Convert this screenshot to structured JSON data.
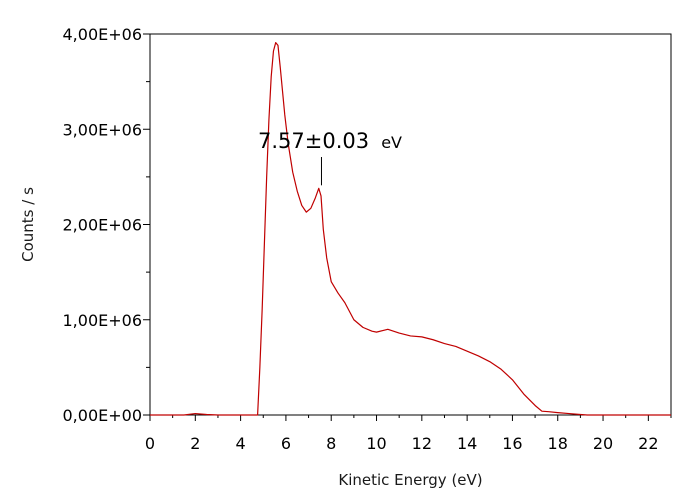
{
  "chart_data": {
    "type": "line",
    "title": "",
    "xlabel": "Kinetic Energy (eV)",
    "ylabel": "Counts / s",
    "xlim": [
      0,
      23
    ],
    "ylim": [
      0,
      4000000
    ],
    "x_ticks": [
      0,
      2,
      4,
      6,
      8,
      10,
      12,
      14,
      16,
      18,
      20,
      22
    ],
    "x_tick_labels": [
      "0",
      "2",
      "4",
      "6",
      "8",
      "10",
      "12",
      "14",
      "16",
      "18",
      "20",
      "22"
    ],
    "y_ticks": [
      0,
      1000000,
      2000000,
      3000000,
      4000000
    ],
    "y_tick_labels": [
      "0,00E+00",
      "1,00E+06",
      "2,00E+06",
      "3,00E+06",
      "4,00E+06"
    ],
    "grid": false,
    "legend": "none",
    "line_color": "#c00000",
    "series": [
      {
        "x": [
          0,
          1.5,
          2.0,
          2.5,
          3.0,
          4.0,
          4.5,
          4.75,
          4.85,
          4.95,
          5.05,
          5.15,
          5.25,
          5.35,
          5.45,
          5.55,
          5.65,
          5.75,
          5.85,
          5.95,
          6.1,
          6.3,
          6.5,
          6.7,
          6.9,
          7.1,
          7.3,
          7.45,
          7.55,
          7.65,
          7.8,
          8.0,
          8.3,
          8.6,
          9.0,
          9.4,
          9.8,
          10.0,
          10.5,
          11.0,
          11.5,
          12.0,
          12.5,
          13.0,
          13.5,
          14.0,
          14.5,
          15.0,
          15.5,
          16.0,
          16.5,
          17.0,
          17.3,
          17.6,
          18.0,
          18.5,
          19.0,
          19.3,
          20,
          21,
          22,
          23
        ],
        "y": [
          0,
          0,
          15000,
          5000,
          0,
          0,
          0,
          0,
          500000,
          1100000,
          1800000,
          2500000,
          3100000,
          3550000,
          3820000,
          3910000,
          3880000,
          3650000,
          3400000,
          3150000,
          2850000,
          2550000,
          2350000,
          2200000,
          2130000,
          2170000,
          2280000,
          2380000,
          2300000,
          1950000,
          1650000,
          1400000,
          1280000,
          1180000,
          1000000,
          920000,
          880000,
          870000,
          900000,
          860000,
          830000,
          820000,
          790000,
          750000,
          720000,
          670000,
          620000,
          560000,
          480000,
          370000,
          220000,
          100000,
          40000,
          35000,
          25000,
          15000,
          5000,
          0,
          0,
          0,
          0,
          0
        ]
      }
    ],
    "annotations": [
      {
        "text": "7.57±0.03",
        "unit": "eV",
        "x": 7.57,
        "y": 2380000
      }
    ]
  }
}
